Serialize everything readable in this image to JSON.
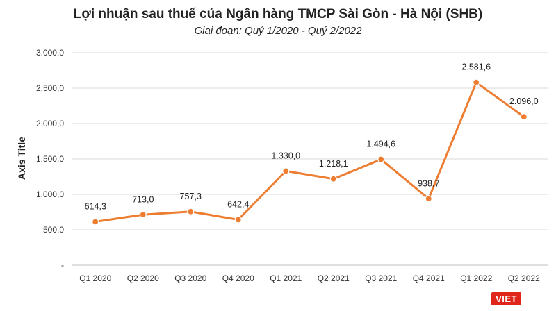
{
  "chart_data": {
    "type": "line",
    "title": "Lợi nhuận sau thuế của Ngân hàng TMCP Sài Gòn - Hà Nội (SHB)",
    "subtitle": "Giai đoạn: Quý 1/2020 - Quý 2/2022",
    "ylabel": "Axis Title",
    "xlabel": "",
    "ylim": [
      0,
      3000
    ],
    "yticks": [
      {
        "value": 0,
        "label": "-"
      },
      {
        "value": 500,
        "label": "500,0"
      },
      {
        "value": 1000,
        "label": "1.000,0"
      },
      {
        "value": 1500,
        "label": "1.500,0"
      },
      {
        "value": 2000,
        "label": "2.000,0"
      },
      {
        "value": 2500,
        "label": "2.500,0"
      },
      {
        "value": 3000,
        "label": "3.000,0"
      }
    ],
    "grid": true,
    "color": "#ed7d31",
    "categories": [
      "Q1 2020",
      "Q2 2020",
      "Q3 2020",
      "Q4 2020",
      "Q1 2021",
      "Q2 2021",
      "Q3 2021",
      "Q4 2021",
      "Q1 2022",
      "Q2 2022"
    ],
    "values": [
      614.3,
      713.0,
      757.3,
      642.4,
      1330.0,
      1218.1,
      1494.6,
      938.7,
      2581.6,
      2096.0
    ],
    "data_labels": [
      "614,3",
      "713,0",
      "757,3",
      "642,4",
      "1.330,0",
      "1.218,1",
      "1.494,6",
      "938,7",
      "2.581,6",
      "2.096,0"
    ]
  },
  "watermark": "VIET"
}
